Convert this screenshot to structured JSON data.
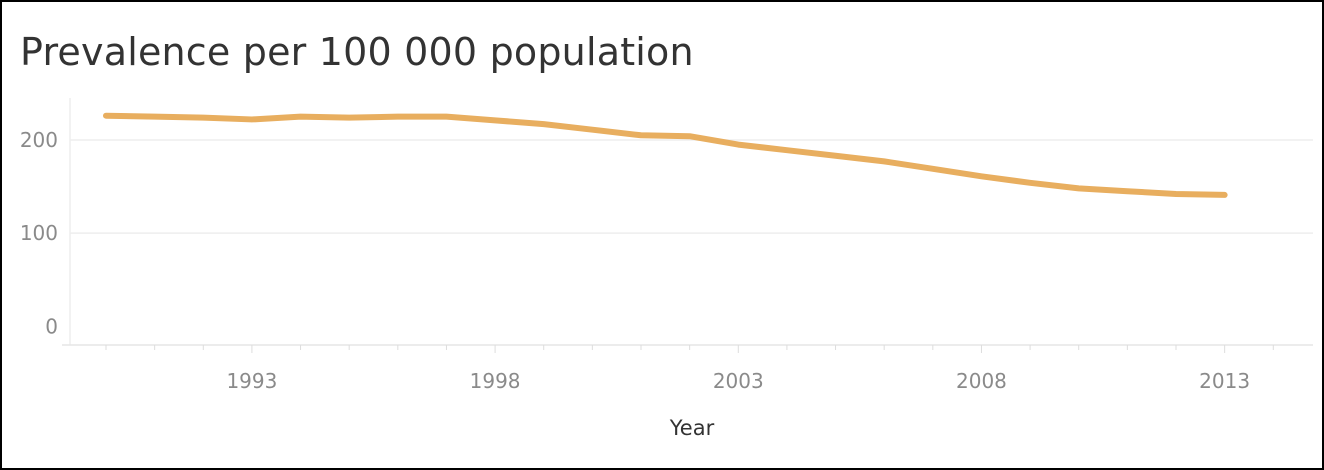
{
  "chart_data": {
    "type": "line",
    "title": "Prevalence per 100 000 population",
    "xlabel": "Year",
    "ylabel": "",
    "xlim": [
      1990,
      2014.2
    ],
    "ylim": [
      -20,
      245
    ],
    "x_ticks": [
      "1993",
      "1998",
      "2003",
      "2008",
      "2013"
    ],
    "y_ticks": [
      "0",
      "100",
      "200"
    ],
    "grid": true,
    "series": [
      {
        "color": "#E8AE5F",
        "x": [
          1990,
          1991,
          1992,
          1993,
          1994,
          1995,
          1996,
          1997,
          1998,
          1999,
          2000,
          2001,
          2002,
          2003,
          2004,
          2005,
          2006,
          2007,
          2008,
          2009,
          2010,
          2011,
          2012,
          2013
        ],
        "values": [
          226,
          225,
          224,
          222,
          225,
          224,
          225,
          225,
          221,
          217,
          211,
          205,
          204,
          195,
          189,
          183,
          177,
          169,
          161,
          154,
          148,
          145,
          142,
          141
        ]
      }
    ]
  }
}
